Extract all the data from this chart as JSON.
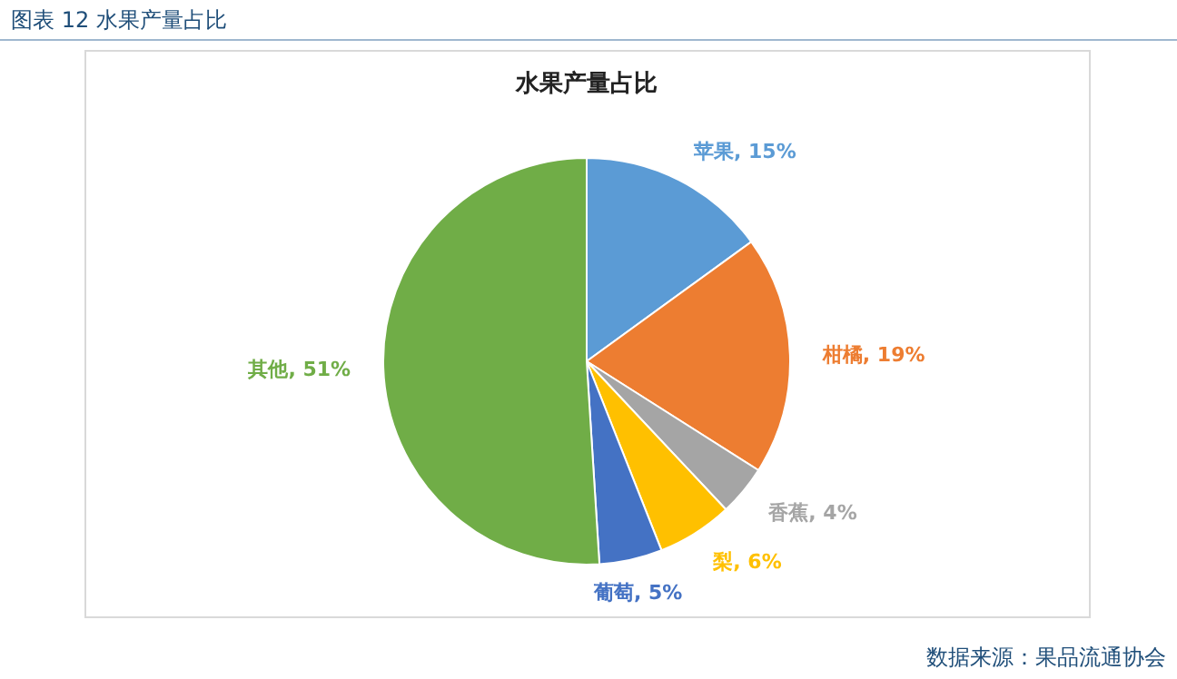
{
  "chart_data": {
    "type": "pie",
    "title": "水果产量占比",
    "categories": [
      "苹果",
      "柑橘",
      "香蕉",
      "梨",
      "葡萄",
      "其他"
    ],
    "values": [
      15,
      19,
      4,
      6,
      5,
      51
    ],
    "colors": [
      "#5b9bd5",
      "#ed7d31",
      "#a5a5a5",
      "#ffc000",
      "#4472c4",
      "#70ad47"
    ],
    "value_labels": [
      ", 15%",
      ", 19%",
      ", 4%",
      ", 6%",
      ", 5%",
      ", 51%"
    ],
    "legend": false,
    "annotations": [
      "图表 12  水果产量占比",
      "数据来源：果品流通协会"
    ]
  }
}
